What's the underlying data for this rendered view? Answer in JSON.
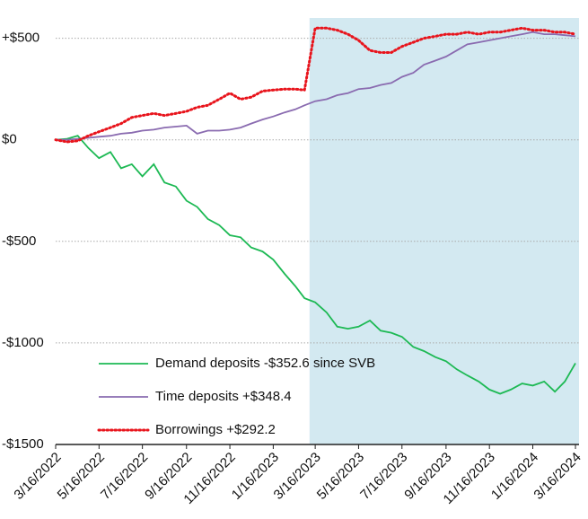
{
  "chart_data": {
    "type": "line",
    "x": [
      "3/16/2022",
      "4/1/2022",
      "4/16/2022",
      "5/1/2022",
      "5/16/2022",
      "6/1/2022",
      "6/16/2022",
      "7/1/2022",
      "7/16/2022",
      "8/1/2022",
      "8/16/2022",
      "9/1/2022",
      "9/16/2022",
      "10/1/2022",
      "10/16/2022",
      "11/1/2022",
      "11/16/2022",
      "12/1/2022",
      "12/16/2022",
      "1/1/2023",
      "1/16/2023",
      "2/1/2023",
      "2/16/2023",
      "3/1/2023",
      "3/16/2023",
      "4/1/2023",
      "4/16/2023",
      "5/1/2023",
      "5/16/2023",
      "6/1/2023",
      "6/16/2023",
      "7/1/2023",
      "7/16/2023",
      "8/1/2023",
      "8/16/2023",
      "9/1/2023",
      "9/16/2023",
      "10/1/2023",
      "10/16/2023",
      "11/1/2023",
      "11/16/2023",
      "12/1/2023",
      "12/16/2023",
      "1/1/2024",
      "1/16/2024",
      "2/1/2024",
      "2/16/2024",
      "3/1/2024",
      "3/16/2024"
    ],
    "series": [
      {
        "name": "Demand deposits -$352.6 since SVB",
        "color": "#1db954",
        "style": "solid",
        "values": [
          0,
          5,
          20,
          -40,
          -90,
          -60,
          -140,
          -120,
          -180,
          -120,
          -210,
          -230,
          -300,
          -330,
          -390,
          -420,
          -470,
          -480,
          -530,
          -550,
          -590,
          -660,
          -720,
          -780,
          -800,
          -850,
          -920,
          -930,
          -920,
          -890,
          -940,
          -950,
          -970,
          -1020,
          -1040,
          -1070,
          -1090,
          -1130,
          -1160,
          -1190,
          -1230,
          -1250,
          -1230,
          -1200,
          -1210,
          -1190,
          -1240,
          -1190,
          -1100
        ]
      },
      {
        "name": "Time deposits +$348.4",
        "color": "#8a6bb0",
        "style": "solid",
        "values": [
          0,
          0,
          5,
          10,
          15,
          20,
          30,
          35,
          45,
          50,
          60,
          65,
          70,
          30,
          45,
          45,
          50,
          60,
          80,
          100,
          115,
          135,
          150,
          170,
          190,
          200,
          220,
          230,
          250,
          255,
          270,
          280,
          310,
          330,
          370,
          390,
          410,
          440,
          470,
          480,
          490,
          500,
          510,
          520,
          530,
          520,
          520,
          515,
          510
        ]
      },
      {
        "name": "Borrowings +$292.2",
        "color": "#e8141c",
        "style": "dotted",
        "values": [
          0,
          -10,
          -5,
          20,
          40,
          60,
          80,
          110,
          120,
          130,
          120,
          130,
          140,
          160,
          170,
          200,
          230,
          200,
          210,
          240,
          245,
          250,
          250,
          245,
          550,
          550,
          540,
          520,
          490,
          440,
          430,
          430,
          460,
          480,
          500,
          510,
          520,
          520,
          530,
          520,
          530,
          530,
          540,
          550,
          540,
          540,
          530,
          530,
          520
        ]
      }
    ],
    "xlim": [
      "3/16/2022",
      "3/21/2024"
    ],
    "xticks": [
      "3/16/2022",
      "5/16/2022",
      "7/16/2022",
      "9/16/2022",
      "11/16/2022",
      "1/16/2023",
      "3/16/2023",
      "5/16/2023",
      "7/16/2023",
      "9/16/2023",
      "11/16/2023",
      "1/16/2024",
      "3/16/2024"
    ],
    "ylim": [
      -1500,
      600
    ],
    "yticks": [
      {
        "value": 500,
        "label": "+$500"
      },
      {
        "value": 0,
        "label": "$0"
      },
      {
        "value": -500,
        "label": "-$500"
      },
      {
        "value": -1000,
        "label": "-$1000"
      },
      {
        "value": -1500,
        "label": "-$1500"
      }
    ],
    "highlight": {
      "from": "3/8/2023",
      "to": "3/21/2024",
      "color": "#d3e9f1"
    },
    "grid": true
  }
}
